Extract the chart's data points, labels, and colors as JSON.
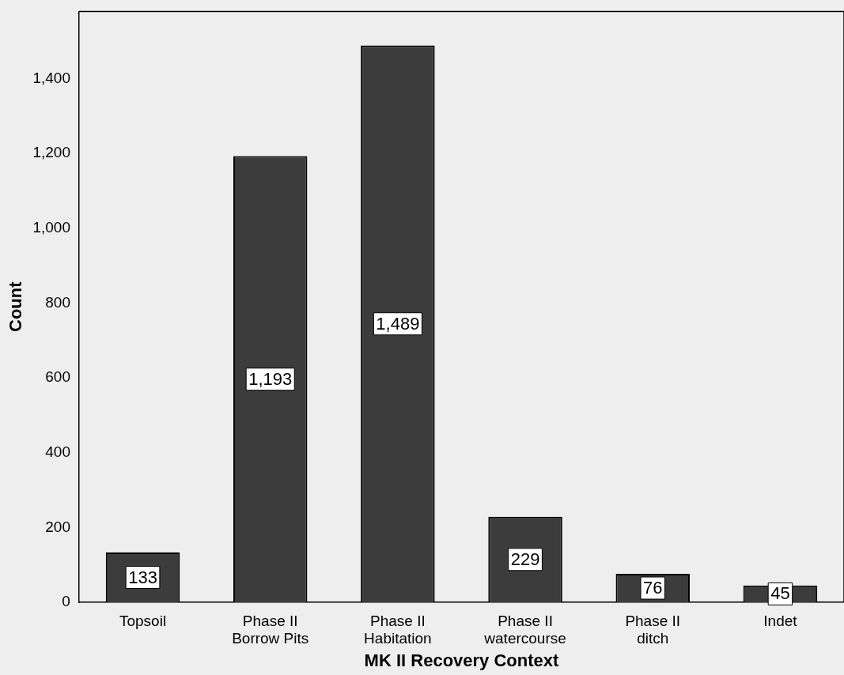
{
  "chart_data": {
    "type": "bar",
    "xlabel": "MK II Recovery Context",
    "ylabel": "Count",
    "categories": [
      "Topsoil",
      "Phase II\nBorrow Pits",
      "Phase II\nHabitation",
      "Phase II\nwatercourse",
      "Phase II\nditch",
      "Indet"
    ],
    "values": [
      133,
      1193,
      1489,
      229,
      76,
      45
    ],
    "value_labels": [
      "133",
      "1,193",
      "1,489",
      "229",
      "76",
      "45"
    ],
    "color": "#3c3c3c",
    "ylim": [
      0,
      1580
    ],
    "yticks": [
      {
        "value": 0,
        "label": "0"
      },
      {
        "value": 200,
        "label": "200"
      },
      {
        "value": 400,
        "label": "400"
      },
      {
        "value": 600,
        "label": "600"
      },
      {
        "value": 800,
        "label": "800"
      },
      {
        "value": 1000,
        "label": "1,000"
      },
      {
        "value": 1200,
        "label": "1,200"
      },
      {
        "value": 1400,
        "label": "1,400"
      }
    ],
    "grid": false,
    "legend": false
  }
}
